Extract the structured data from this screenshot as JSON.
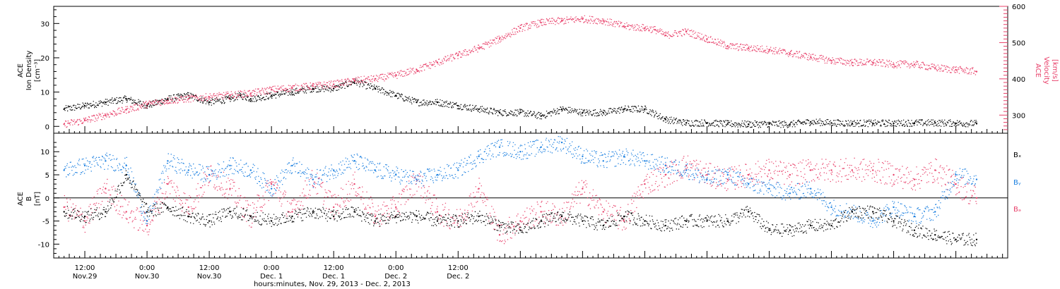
{
  "colors": {
    "black": "#000000",
    "pink": "#e8406a",
    "blue": "#1a7fe0"
  },
  "chart_data": [
    {
      "type": "scatter",
      "panel": "top",
      "ylabel_left": [
        "ACE",
        "Ion Density",
        "[cm⁻³]"
      ],
      "ylabel_right": [
        "ACE",
        "Velocity",
        "[km/s]"
      ],
      "ylim_left": [
        -2,
        35
      ],
      "ylim_right": [
        250,
        600
      ],
      "yticks_left": [
        0,
        10,
        20,
        30
      ],
      "yticks_right": [
        300,
        400,
        500,
        600
      ],
      "series": [
        {
          "axis": "left",
          "color": "#000000",
          "x": [
            -4,
            0,
            4,
            8,
            12,
            16,
            20,
            24,
            28,
            30,
            32,
            36,
            40,
            44,
            48,
            52,
            56,
            60,
            64,
            68,
            72,
            76,
            80,
            84,
            88,
            92,
            96,
            100,
            104,
            108,
            112,
            116,
            120,
            124,
            128,
            132,
            136,
            140,
            144,
            148,
            152,
            156,
            160,
            164,
            168,
            172
          ],
          "y": [
            5,
            6,
            7,
            8,
            6,
            8,
            9,
            7,
            8,
            9,
            8,
            9,
            10,
            11,
            11,
            13,
            11,
            9,
            7,
            7,
            6,
            5,
            4,
            4,
            3,
            5,
            4,
            4,
            5,
            5,
            2,
            1,
            1,
            0.7,
            0.6,
            0.7,
            0.6,
            1.3,
            1,
            0.9,
            0.9,
            0.9,
            1,
            1,
            0.9,
            0.8
          ]
        },
        {
          "axis": "right",
          "color": "#e8406a",
          "x": [
            -4,
            0,
            4,
            8,
            12,
            16,
            20,
            24,
            28,
            32,
            36,
            40,
            44,
            48,
            52,
            56,
            60,
            64,
            68,
            72,
            76,
            80,
            84,
            88,
            92,
            96,
            100,
            104,
            108,
            110,
            112,
            116,
            120,
            124,
            128,
            132,
            136,
            140,
            144,
            148,
            152,
            156,
            160,
            164,
            168,
            172
          ],
          "y": [
            275,
            285,
            300,
            315,
            330,
            340,
            345,
            350,
            355,
            360,
            370,
            375,
            380,
            385,
            395,
            400,
            410,
            425,
            445,
            465,
            485,
            510,
            540,
            555,
            560,
            565,
            560,
            545,
            540,
            535,
            520,
            530,
            510,
            490,
            485,
            480,
            470,
            460,
            450,
            445,
            445,
            440,
            440,
            430,
            425,
            420
          ]
        }
      ]
    },
    {
      "type": "scatter",
      "panel": "bottom",
      "ylabel_left": [
        "ACE",
        "B",
        "[nT]"
      ],
      "ylim": [
        -13,
        14
      ],
      "yticks": [
        -10,
        -5,
        0,
        5,
        10
      ],
      "legend": [
        "Bₓ",
        "Bᵧ",
        "Bₔ"
      ],
      "legend_placement": "right",
      "series": [
        {
          "name": "Bx",
          "color": "#000000",
          "x": [
            -4,
            0,
            4,
            8,
            12,
            16,
            20,
            24,
            28,
            32,
            36,
            40,
            44,
            48,
            52,
            56,
            60,
            64,
            68,
            72,
            76,
            80,
            84,
            88,
            92,
            96,
            100,
            104,
            108,
            112,
            116,
            120,
            124,
            128,
            132,
            136,
            140,
            144,
            148,
            152,
            156,
            160,
            164,
            168,
            172
          ],
          "y": [
            -3,
            -4,
            -3,
            5,
            -3,
            -2,
            -4,
            -5,
            -3,
            -4,
            -5,
            -4,
            -3,
            -4,
            -3,
            -5,
            -4,
            -4,
            -5,
            -5,
            -4,
            -6,
            -7,
            -5,
            -4,
            -5,
            -6,
            -4,
            -5,
            -6,
            -5,
            -5,
            -5,
            -3,
            -7,
            -7,
            -6,
            -6,
            -3,
            -3,
            -5,
            -7,
            -8,
            -9,
            -9
          ]
        },
        {
          "name": "By",
          "color": "#1a7fe0",
          "x": [
            -4,
            0,
            4,
            8,
            12,
            16,
            20,
            24,
            28,
            32,
            36,
            40,
            44,
            48,
            52,
            56,
            60,
            64,
            68,
            72,
            76,
            80,
            84,
            88,
            92,
            96,
            100,
            104,
            108,
            112,
            116,
            120,
            124,
            128,
            132,
            136,
            140,
            144,
            148,
            152,
            156,
            160,
            164,
            168,
            172
          ],
          "y": [
            6,
            7,
            8,
            7,
            -5,
            8,
            6,
            5,
            7,
            6,
            2,
            7,
            4,
            6,
            8,
            6,
            5,
            4,
            5,
            6,
            9,
            11,
            10,
            11,
            12,
            9,
            8,
            9,
            8,
            7,
            6,
            4,
            5,
            3,
            2,
            1,
            2,
            -2,
            -3,
            -5,
            -2,
            -4,
            -3,
            5,
            4
          ]
        },
        {
          "name": "Bz",
          "color": "#e8406a",
          "x": [
            -4,
            0,
            4,
            8,
            12,
            16,
            20,
            24,
            28,
            32,
            36,
            40,
            44,
            48,
            52,
            56,
            60,
            64,
            68,
            72,
            76,
            80,
            84,
            88,
            92,
            96,
            100,
            104,
            108,
            112,
            116,
            120,
            124,
            128,
            132,
            136,
            140,
            144,
            148,
            152,
            156,
            160,
            164,
            168,
            172
          ],
          "y": [
            -2,
            -5,
            2,
            -3,
            -6,
            3,
            -2,
            5,
            2,
            -4,
            3,
            -3,
            4,
            -2,
            3,
            -4,
            -2,
            4,
            -3,
            -5,
            2,
            -8,
            -5,
            -3,
            -4,
            2,
            -3,
            -5,
            3,
            5,
            7,
            5,
            4,
            5,
            6,
            5,
            6,
            6,
            6,
            6,
            5,
            4,
            6,
            3,
            0
          ]
        }
      ]
    }
  ],
  "x_axis": {
    "xlim_hours": [
      -6,
      178
    ],
    "ticks": [
      {
        "h": 0,
        "time": "12:00",
        "date": "Nov.29"
      },
      {
        "h": 12,
        "time": "0:00",
        "date": "Nov.30"
      },
      {
        "h": 24,
        "time": "12:00",
        "date": "Nov.30"
      },
      {
        "h": 36,
        "time": "0:00",
        "date": "Dec. 1"
      },
      {
        "h": 48,
        "time": "12:00",
        "date": "Dec. 1"
      },
      {
        "h": 60,
        "time": "0:00",
        "date": "Dec. 2"
      },
      {
        "h": 72,
        "time": "12:00",
        "date": "Dec. 2"
      }
    ],
    "xlabel": "hours:minutes, Nov. 29, 2013 - Dec. 2, 2013"
  }
}
